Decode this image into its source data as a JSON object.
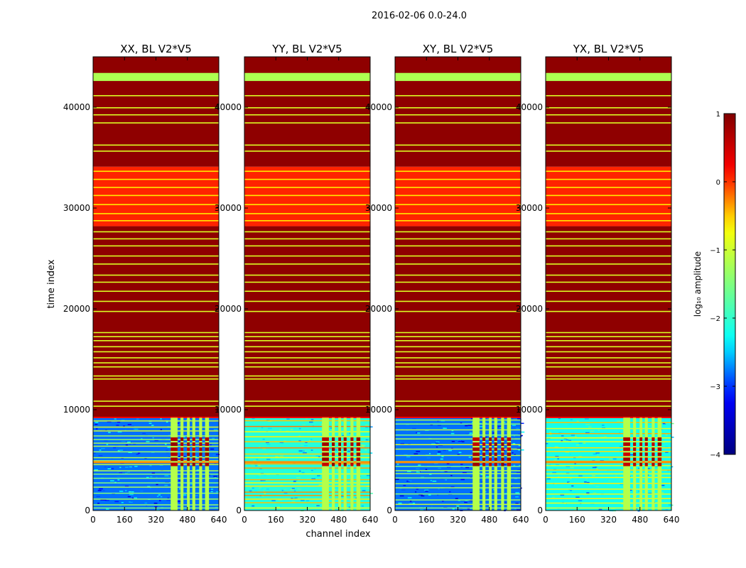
{
  "chart_data": {
    "type": "heatmap",
    "suptitle": "2016-02-06 0.0-24.0",
    "xlabel": "channel index",
    "ylabel": "time index",
    "xlim": [
      0,
      640
    ],
    "ylim": [
      0,
      45000
    ],
    "xticks": [
      0,
      160,
      320,
      480,
      640
    ],
    "yticks": [
      0,
      10000,
      20000,
      30000,
      40000
    ],
    "panels": [
      {
        "title": "XX, BL V2*V5",
        "low_band_level": -2.8
      },
      {
        "title": "YY, BL V2*V5",
        "low_band_level": -2.1
      },
      {
        "title": "XY, BL V2*V5",
        "low_band_level": -2.8
      },
      {
        "title": "YX, BL V2*V5",
        "low_band_level": -2.2
      }
    ],
    "bands": [
      {
        "from": 0,
        "to": 9200,
        "level": "low"
      },
      {
        "from": 9200,
        "to": 28200,
        "level": 0.9
      },
      {
        "from": 28200,
        "to": 34100,
        "level": 0.05
      },
      {
        "from": 34100,
        "to": 45000,
        "level": 0.9
      },
      {
        "from": 42600,
        "to": 43400,
        "level": -1.2
      }
    ],
    "rfi_channels": [
      [
        395,
        430
      ],
      [
        445,
        460
      ],
      [
        478,
        492
      ],
      [
        505,
        520
      ],
      [
        540,
        555
      ],
      [
        570,
        590
      ]
    ],
    "stripes_high": [
      10400,
      10900,
      13100,
      13400,
      14300,
      14700,
      15200,
      15800,
      16300,
      16900,
      17300,
      17700,
      19800,
      20800,
      21800,
      22700,
      23400,
      24500,
      25300,
      26300,
      27000,
      27700,
      38500,
      39300,
      40000,
      41200,
      36300,
      35700
    ],
    "stripes_mid": [
      28800,
      29500,
      30400,
      31300,
      32100,
      32900,
      33700
    ],
    "colorbar": {
      "label": "log₁₀ amplitude",
      "range": [
        -4,
        1
      ],
      "ticks": [
        1,
        0,
        -1,
        -2,
        -3,
        -4
      ],
      "tick_labels": [
        "1",
        "0",
        "−1",
        "−2",
        "−3",
        "−4"
      ],
      "colormap": "jet",
      "colors": [
        "#000080",
        "#0000ff",
        "#00ffff",
        "#7fff7f",
        "#ffff00",
        "#ff0000",
        "#800000"
      ]
    }
  }
}
